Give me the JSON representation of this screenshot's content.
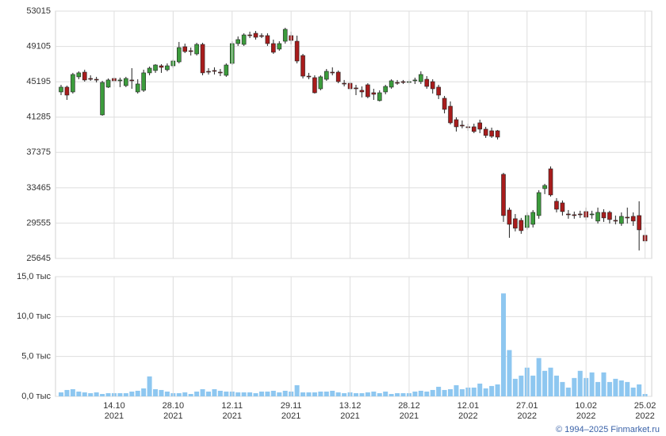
{
  "chart_data": [
    {
      "type": "candlestick",
      "ylim": [
        25645,
        53015
      ],
      "yticks": [
        25645,
        29555,
        33465,
        37375,
        41285,
        45195,
        49105,
        53015
      ],
      "grid": true,
      "up_color": "#3c9c3c",
      "down_color": "#a81c1c",
      "open": [
        44070,
        44600,
        44070,
        45740,
        46260,
        45560,
        45470,
        41530,
        44600,
        45560,
        45300,
        44770,
        45390,
        44070,
        44250,
        46180,
        46440,
        46960,
        46530,
        46960,
        47400,
        49070,
        48630,
        48280,
        49330,
        46350,
        46440,
        46260,
        45910,
        47230,
        49420,
        49330,
        50380,
        50560,
        50300,
        50300,
        49420,
        48810,
        49680,
        50300,
        49680,
        48100,
        45820,
        45650,
        44420,
        45470,
        46260,
        46260,
        45030,
        45030,
        44510,
        44250,
        44860,
        43980,
        43110,
        44070,
        44600,
        45120,
        45210,
        45120,
        45300,
        45210,
        45470,
        45210,
        44600,
        43370,
        42490,
        41000,
        40390,
        40210,
        40210,
        40650,
        39950,
        39770,
        39770,
        34950,
        31000,
        30040,
        29860,
        29070,
        29420,
        30390,
        33370,
        35560,
        31970,
        31790,
        30560,
        30480,
        30560,
        30830,
        30480,
        29780,
        30740,
        30740,
        29860,
        29510,
        30210,
        30300,
        30390,
        28200
      ],
      "high": [
        44860,
        44770,
        46180,
        46350,
        46530,
        45910,
        45740,
        45300,
        45560,
        45740,
        45650,
        45740,
        46700,
        45470,
        46530,
        46880,
        47140,
        47140,
        47230,
        47670,
        49600,
        49420,
        48980,
        49510,
        49510,
        46700,
        46790,
        46610,
        47230,
        49680,
        50210,
        50560,
        50740,
        50820,
        50560,
        50560,
        49860,
        49680,
        51170,
        50740,
        50300,
        48280,
        46180,
        45910,
        45910,
        46610,
        46790,
        46440,
        45390,
        45210,
        44860,
        44680,
        45030,
        44420,
        44250,
        44860,
        45470,
        45390,
        45390,
        45470,
        45650,
        46350,
        45820,
        45470,
        44860,
        43630,
        43020,
        41260,
        40910,
        40560,
        40560,
        41000,
        40210,
        40120,
        39860,
        35120,
        31270,
        30560,
        30130,
        30740,
        31000,
        33200,
        33900,
        35830,
        32320,
        32060,
        31000,
        30830,
        30920,
        31270,
        30920,
        31270,
        31090,
        30920,
        30390,
        30740,
        31270,
        30740,
        31970,
        29070
      ],
      "low": [
        43720,
        43190,
        43890,
        45470,
        45210,
        45300,
        45120,
        41440,
        44510,
        44600,
        44600,
        44600,
        44420,
        43890,
        44070,
        45910,
        46180,
        46180,
        46350,
        46700,
        47230,
        48370,
        48100,
        48100,
        45910,
        46000,
        46000,
        45820,
        45740,
        47050,
        49160,
        49160,
        50030,
        49860,
        50030,
        49160,
        48280,
        48630,
        49420,
        49330,
        47230,
        45560,
        45470,
        43890,
        44250,
        45300,
        45910,
        45030,
        44680,
        44250,
        43720,
        43460,
        43370,
        43190,
        43020,
        43810,
        44420,
        44860,
        44950,
        44860,
        44950,
        44950,
        44420,
        43890,
        43280,
        41700,
        40470,
        39690,
        40040,
        39770,
        39510,
        39510,
        38980,
        38980,
        38810,
        29690,
        27930,
        28640,
        28370,
        28810,
        29070,
        30040,
        32760,
        32490,
        30740,
        30390,
        30040,
        30040,
        30130,
        29860,
        30040,
        29510,
        29690,
        29510,
        29420,
        29250,
        29510,
        29250,
        26530,
        27320
      ],
      "close": [
        44600,
        43720,
        46000,
        46180,
        45390,
        45470,
        45390,
        45120,
        45390,
        45300,
        45390,
        45560,
        45300,
        44950,
        46180,
        46700,
        47050,
        46790,
        46960,
        47490,
        48980,
        48540,
        48540,
        49330,
        46180,
        46260,
        46350,
        46180,
        47050,
        49420,
        49860,
        50380,
        50300,
        50120,
        50210,
        49420,
        48460,
        49420,
        51000,
        49770,
        47490,
        45820,
        45740,
        43980,
        45740,
        46350,
        46180,
        45210,
        44950,
        44420,
        44420,
        44070,
        43540,
        43810,
        43980,
        44680,
        45300,
        45030,
        45120,
        45210,
        45390,
        46000,
        44680,
        44420,
        43720,
        42140,
        40650,
        40210,
        40300,
        40120,
        39690,
        39950,
        39250,
        39160,
        39070,
        30390,
        29420,
        28990,
        28720,
        30390,
        30740,
        32930,
        33720,
        32670,
        31090,
        30830,
        30480,
        30390,
        30480,
        30210,
        30560,
        30740,
        30130,
        29950,
        29780,
        30300,
        30130,
        29780,
        28810,
        27580
      ]
    },
    {
      "type": "bar",
      "categories": [
        null,
        null,
        null,
        null,
        null,
        null,
        null,
        null,
        null,
        "14.10\n2021",
        null,
        null,
        null,
        null,
        null,
        null,
        null,
        null,
        null,
        "28.10\n2021",
        null,
        null,
        null,
        null,
        null,
        null,
        null,
        null,
        null,
        "12.11\n2021",
        null,
        null,
        null,
        null,
        null,
        null,
        null,
        null,
        null,
        "29.11\n2021",
        null,
        null,
        null,
        null,
        null,
        null,
        null,
        null,
        null,
        "13.12\n2021",
        null,
        null,
        null,
        null,
        null,
        null,
        null,
        null,
        null,
        "28.12\n2021",
        null,
        null,
        null,
        null,
        null,
        null,
        null,
        null,
        null,
        "12.01\n2022",
        null,
        null,
        null,
        null,
        null,
        null,
        null,
        null,
        null,
        "27.01\n2022",
        null,
        null,
        null,
        null,
        null,
        null,
        null,
        null,
        null,
        "10.02\n2022",
        null,
        null,
        null,
        null,
        null,
        null,
        null,
        null,
        null,
        "25.02\n2022"
      ],
      "values": [
        0.5,
        0.8,
        0.9,
        0.6,
        0.5,
        0.4,
        0.5,
        0.3,
        0.4,
        0.4,
        0.4,
        0.4,
        0.6,
        0.7,
        1.0,
        2.5,
        0.9,
        0.8,
        0.6,
        0.4,
        0.4,
        0.5,
        0.3,
        0.6,
        0.9,
        0.6,
        0.9,
        0.7,
        0.6,
        0.6,
        0.5,
        0.5,
        0.5,
        0.4,
        0.6,
        0.6,
        0.7,
        0.5,
        0.7,
        0.6,
        1.4,
        0.5,
        0.5,
        0.5,
        0.6,
        0.6,
        0.7,
        0.5,
        0.4,
        0.5,
        0.4,
        0.4,
        0.5,
        0.6,
        0.4,
        0.6,
        0.3,
        0.4,
        0.4,
        0.4,
        0.6,
        0.7,
        0.6,
        0.8,
        1.2,
        0.8,
        0.9,
        1.4,
        0.9,
        1.1,
        1.1,
        1.6,
        1.0,
        1.3,
        1.5,
        12.9,
        5.8,
        2.2,
        2.6,
        3.6,
        2.6,
        4.8,
        3.2,
        3.6,
        2.6,
        1.8,
        1.1,
        2.3,
        3.2,
        2.3,
        3.0,
        1.8,
        3.0,
        1.8,
        2.2,
        2.0,
        1.8,
        1.1,
        1.5,
        0.3
      ],
      "color": "#8ec7f0",
      "ylim": [
        0,
        15
      ],
      "yticks": [
        {
          "value": 0,
          "label": "0,0 тыс"
        },
        {
          "value": 5,
          "label": "5,0 тыс"
        },
        {
          "value": 10,
          "label": "10,0 тыс"
        },
        {
          "value": 15,
          "label": "15,0 тыс"
        }
      ],
      "grid": true
    }
  ],
  "copyright": "© 1994–2025 Finmarket.ru"
}
